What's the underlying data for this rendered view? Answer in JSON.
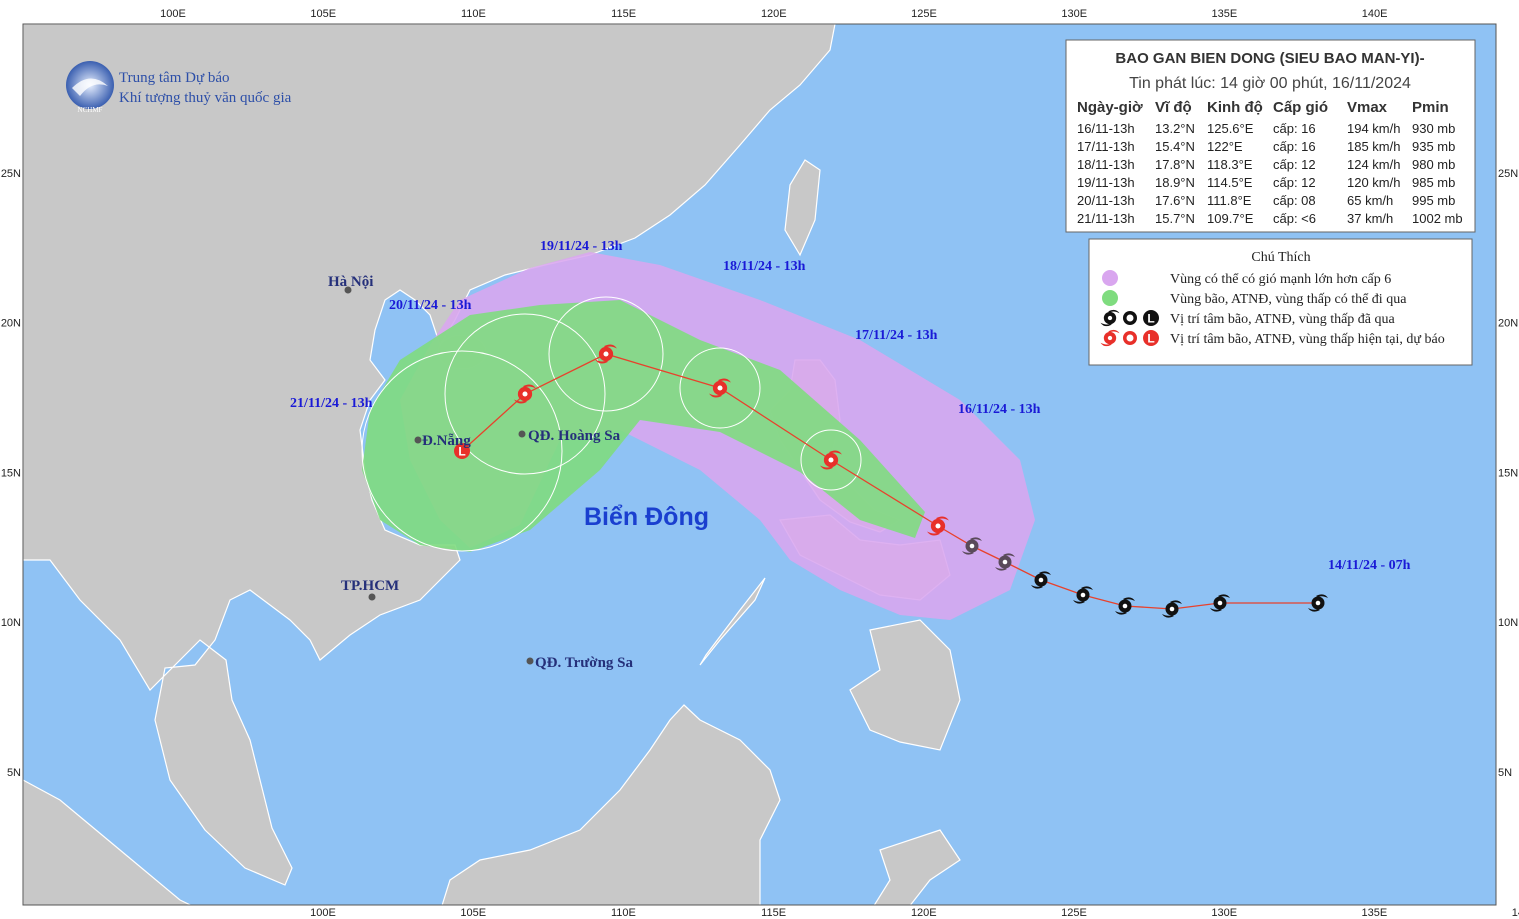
{
  "logo": {
    "short": "NCHMF",
    "line1": "Trung tâm Dự báo",
    "line2": "Khí tượng thuỷ văn quốc gia"
  },
  "axes": {
    "longitudes": [
      "100E",
      "105E",
      "110E",
      "115E",
      "120E",
      "125E",
      "130E",
      "135E",
      "140E"
    ],
    "latitudes": [
      "25N",
      "20N",
      "15N",
      "10N",
      "5N"
    ]
  },
  "info_box": {
    "title": "BAO GAN BIEN DONG (SIEU BAO MAN-YI)-",
    "subtitle": "Tin phát lúc: 14 giờ 00 phút, 16/11/2024",
    "columns": [
      "Ngày-giờ",
      "Vĩ độ",
      "Kinh độ",
      "Cấp gió",
      "Vmax",
      "Pmin"
    ],
    "rows": [
      [
        "16/11-13h",
        "13.2°N",
        "125.6°E",
        "cấp: 16",
        "194 km/h",
        "930 mb"
      ],
      [
        "17/11-13h",
        "15.4°N",
        "122°E",
        "cấp: 16",
        "185 km/h",
        "935 mb"
      ],
      [
        "18/11-13h",
        "17.8°N",
        "118.3°E",
        "cấp: 12",
        "124 km/h",
        "980 mb"
      ],
      [
        "19/11-13h",
        "18.9°N",
        "114.5°E",
        "cấp: 12",
        "120 km/h",
        "985 mb"
      ],
      [
        "20/11-13h",
        "17.6°N",
        "111.8°E",
        "cấp: 08",
        "65 km/h",
        "995 mb"
      ],
      [
        "21/11-13h",
        "15.7°N",
        "109.7°E",
        "cấp: <6",
        "37 km/h",
        "1002 mb"
      ]
    ]
  },
  "legend": {
    "title": "Chú Thích",
    "low_symbol": "L",
    "items": [
      "Vùng có thể có gió mạnh lớn hơn cấp 6",
      "Vùng bão, ATNĐ, vùng thấp có thể đi qua",
      "Vị trí tâm bão, ATNĐ, vùng thấp đã qua",
      "Vị trí tâm bão, ATNĐ, vùng thấp hiện tại, dự báo"
    ]
  },
  "track_labels": [
    "16/11/24 - 13h",
    "17/11/24 - 13h",
    "18/11/24 - 13h",
    "19/11/24 - 13h",
    "20/11/24 - 13h",
    "21/11/24 - 13h",
    "14/11/24 - 07h"
  ],
  "places": [
    "Hà Nội",
    "Đ.Nẵng",
    "QĐ. Hoàng Sa",
    "TP.HCM",
    "QĐ. Trường Sa"
  ],
  "sea_name": "Biển Đông"
}
